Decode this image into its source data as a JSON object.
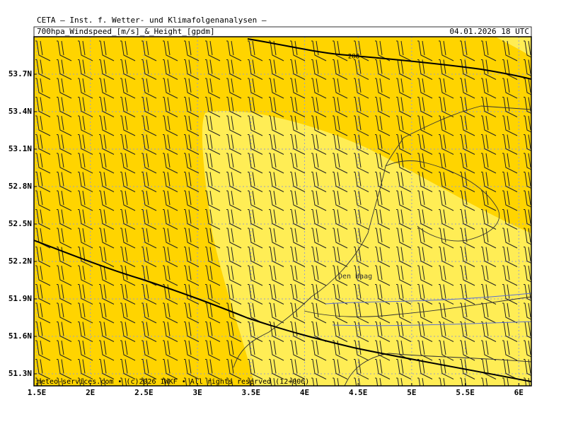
{
  "header": {
    "title": "CETA — Inst. f. Wetter- und Klimafolgenanalysen —",
    "subtitle": "700hpa_Windspeed_[m/s]_&_Height_[gpdm]",
    "datetime": "04.01.2026 18 UTC"
  },
  "map": {
    "contour_label": "288",
    "city": "Den Haag",
    "credit": "meteo-services.com • (c)2026 IWKF • All rights reserved (12+006)",
    "xticks": [
      "1.5E",
      "2E",
      "2.5E",
      "3E",
      "3.5E",
      "4E",
      "4.5E",
      "5E",
      "5.5E",
      "6E"
    ],
    "yticks": [
      "53.7N",
      "53.4N",
      "53.1N",
      "52.8N",
      "52.5N",
      "52.2N",
      "51.9N",
      "51.6N",
      "51.3N"
    ]
  }
}
